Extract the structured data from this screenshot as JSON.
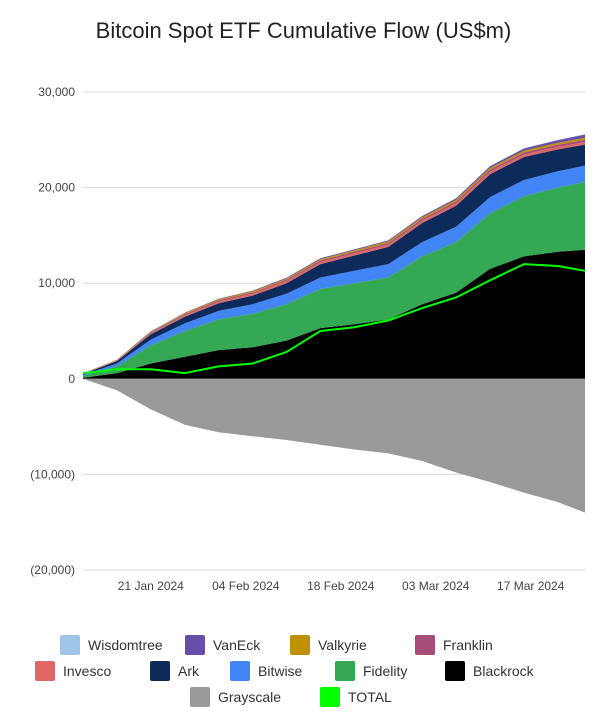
{
  "chart_data": {
    "type": "area",
    "title": "Bitcoin Spot ETF Cumulative Flow (US$m)",
    "xlabel": "",
    "ylabel": "",
    "ylim": [
      -20000,
      30000
    ],
    "y_ticks": [
      30000,
      20000,
      10000,
      0,
      -10000,
      -20000
    ],
    "y_tick_labels": [
      "30,000",
      "20,000",
      "10,000",
      "0",
      "(10,000)",
      "(20,000)"
    ],
    "x_tick_labels": [
      "21 Jan 2024",
      "04 Feb 2024",
      "18 Feb 2024",
      "03 Mar 2024",
      "17 Mar 2024"
    ],
    "x_tick_dates": [
      "2024-01-21",
      "2024-02-04",
      "2024-02-18",
      "2024-03-03",
      "2024-03-17"
    ],
    "x": [
      "2024-01-11",
      "2024-01-16",
      "2024-01-21",
      "2024-01-26",
      "2024-01-31",
      "2024-02-05",
      "2024-02-10",
      "2024-02-15",
      "2024-02-20",
      "2024-02-25",
      "2024-03-01",
      "2024-03-06",
      "2024-03-11",
      "2024-03-16",
      "2024-03-21",
      "2024-03-25"
    ],
    "grid": true,
    "legend_position": "bottom",
    "series": [
      {
        "name": "Blackrock",
        "color": "#000000",
        "values": [
          100,
          600,
          1600,
          2300,
          3000,
          3300,
          4000,
          5300,
          5700,
          6200,
          7800,
          9000,
          11500,
          12800,
          13300,
          13500
        ]
      },
      {
        "name": "Fidelity",
        "color": "#34a853",
        "values": [
          200,
          700,
          1900,
          2700,
          3200,
          3500,
          3800,
          4100,
          4300,
          4400,
          5000,
          5300,
          5800,
          6300,
          6700,
          7100
        ]
      },
      {
        "name": "Bitwise",
        "color": "#4285f4",
        "values": [
          100,
          300,
          600,
          800,
          900,
          1000,
          1100,
          1200,
          1300,
          1400,
          1500,
          1600,
          1700,
          1700,
          1700,
          1700
        ]
      },
      {
        "name": "Ark",
        "color": "#0d2b5a",
        "values": [
          100,
          250,
          550,
          700,
          800,
          900,
          1100,
          1400,
          1600,
          1800,
          2000,
          2200,
          2400,
          2400,
          2300,
          2200
        ]
      },
      {
        "name": "Invesco",
        "color": "#e06666",
        "values": [
          30,
          60,
          120,
          150,
          180,
          200,
          210,
          220,
          230,
          240,
          250,
          250,
          260,
          260,
          260,
          260
        ]
      },
      {
        "name": "Franklin",
        "color": "#a64d79",
        "values": [
          20,
          40,
          80,
          100,
          120,
          130,
          140,
          150,
          160,
          170,
          180,
          190,
          200,
          210,
          220,
          230
        ]
      },
      {
        "name": "Valkyrie",
        "color": "#bf9000",
        "values": [
          20,
          40,
          80,
          100,
          110,
          120,
          130,
          140,
          150,
          160,
          170,
          180,
          190,
          200,
          210,
          220
        ]
      },
      {
        "name": "VanEck",
        "color": "#674ea7",
        "values": [
          10,
          20,
          40,
          50,
          60,
          70,
          80,
          90,
          100,
          110,
          130,
          150,
          180,
          220,
          280,
          340
        ]
      },
      {
        "name": "Wisdomtree",
        "color": "#9fc5e8",
        "values": [
          5,
          10,
          15,
          20,
          20,
          25,
          25,
          30,
          30,
          35,
          35,
          40,
          40,
          45,
          45,
          50
        ]
      },
      {
        "name": "Grayscale",
        "color": "#999999",
        "values": [
          0,
          -1200,
          -3200,
          -4800,
          -5600,
          -6000,
          -6400,
          -6900,
          -7400,
          -7800,
          -8600,
          -9800,
          -10800,
          -11900,
          -12900,
          -14000
        ]
      },
      {
        "name": "TOTAL",
        "color": "#00ff00",
        "type": "line",
        "values": [
          600,
          1000,
          1000,
          600,
          1300,
          1600,
          2800,
          5000,
          5400,
          6100,
          7400,
          8500,
          10300,
          12000,
          11800,
          11300
        ]
      }
    ]
  },
  "legend": {
    "rows": [
      [
        {
          "name": "Wisdomtree",
          "color": "#9fc5e8"
        },
        {
          "name": "VanEck",
          "color": "#674ea7"
        },
        {
          "name": "Valkyrie",
          "color": "#bf9000"
        },
        {
          "name": "Franklin",
          "color": "#a64d79"
        }
      ],
      [
        {
          "name": "Invesco",
          "color": "#e06666"
        },
        {
          "name": "Ark",
          "color": "#0d2b5a"
        },
        {
          "name": "Bitwise",
          "color": "#4285f4"
        },
        {
          "name": "Fidelity",
          "color": "#34a853"
        },
        {
          "name": "Blackrock",
          "color": "#000000"
        }
      ],
      [
        {
          "name": "Grayscale",
          "color": "#999999"
        },
        {
          "name": "TOTAL",
          "color": "#00ff00"
        }
      ]
    ]
  }
}
